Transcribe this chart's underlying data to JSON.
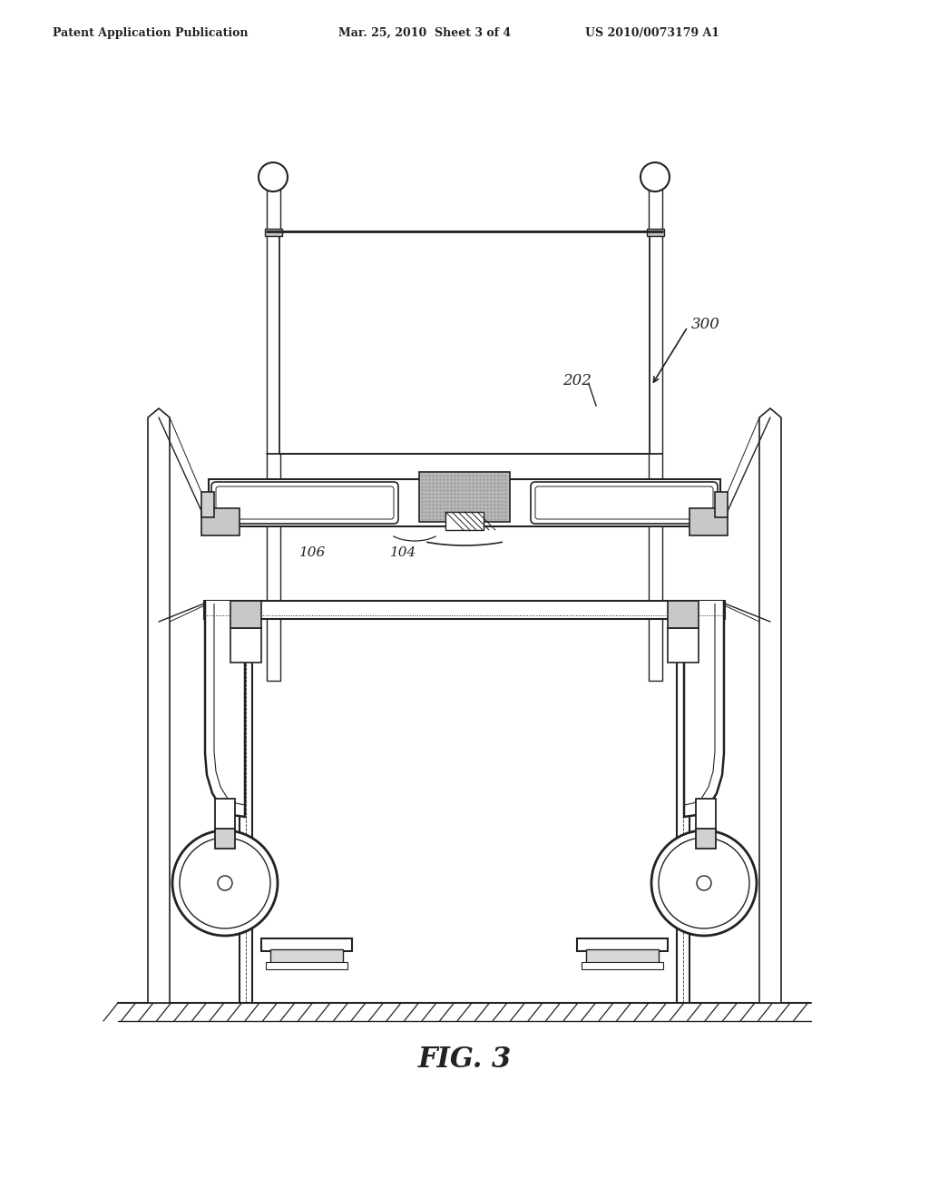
{
  "bg_color": "#ffffff",
  "line_color": "#222222",
  "header_left": "Patent Application Publication",
  "header_mid": "Mar. 25, 2010  Sheet 3 of 4",
  "header_right": "US 2010/0073179 A1",
  "label_300": "300",
  "label_202": "202",
  "label_106": "106",
  "label_104": "104",
  "fig_label": "FIG. 3"
}
